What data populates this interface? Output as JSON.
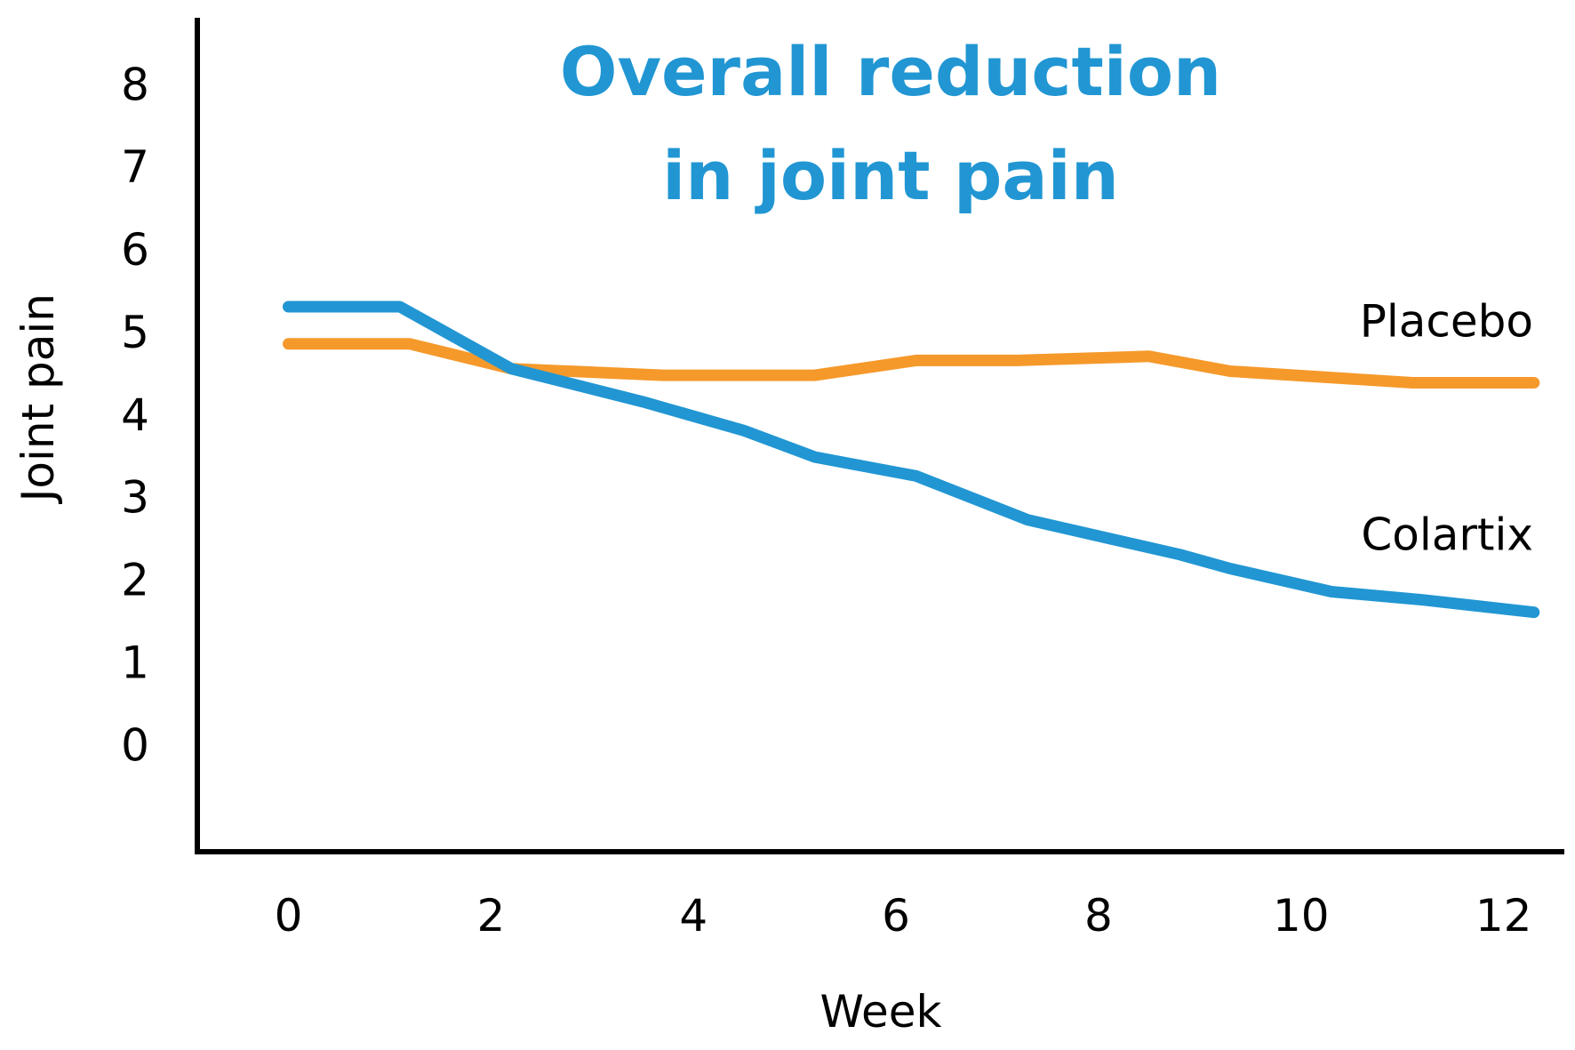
{
  "chart_data": {
    "type": "line",
    "title_lines": [
      "Overall reduction",
      "in joint pain"
    ],
    "xlabel": "Week",
    "ylabel": "Joint pain",
    "xlim": [
      -0.9,
      12.6
    ],
    "ylim": [
      -1.3,
      8.8
    ],
    "x_ticks": [
      "0",
      "2",
      "4",
      "6",
      "8",
      "10",
      "12"
    ],
    "y_ticks": [
      "0",
      "1",
      "2",
      "3",
      "4",
      "5",
      "6",
      "7",
      "8"
    ],
    "grid": false,
    "legend": "none",
    "series": [
      {
        "name": "Placebo",
        "color": "#F5992B",
        "points": [
          [
            0,
            4.85
          ],
          [
            1.2,
            4.85
          ],
          [
            2.2,
            4.55
          ],
          [
            3.7,
            4.47
          ],
          [
            5.2,
            4.47
          ],
          [
            6.2,
            4.65
          ],
          [
            7.2,
            4.65
          ],
          [
            8.5,
            4.7
          ],
          [
            9.3,
            4.52
          ],
          [
            11.1,
            4.38
          ],
          [
            12.3,
            4.38
          ]
        ]
      },
      {
        "name": "Colartix",
        "color": "#2196D3",
        "points": [
          [
            0,
            5.3
          ],
          [
            1.1,
            5.3
          ],
          [
            2.2,
            4.55
          ],
          [
            3.5,
            4.15
          ],
          [
            4.5,
            3.8
          ],
          [
            5.2,
            3.48
          ],
          [
            6.2,
            3.25
          ],
          [
            7.3,
            2.72
          ],
          [
            8.8,
            2.3
          ],
          [
            9.3,
            2.13
          ],
          [
            10.3,
            1.85
          ],
          [
            11.2,
            1.75
          ],
          [
            12.3,
            1.6
          ]
        ]
      }
    ],
    "title_color": "#2196D3"
  }
}
